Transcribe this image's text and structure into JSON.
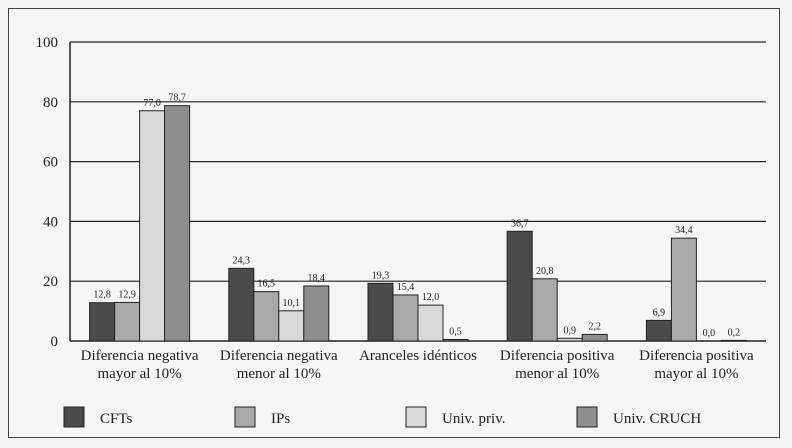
{
  "chart_data": {
    "type": "bar",
    "categories": [
      [
        "Diferencia negativa",
        "mayor al 10%"
      ],
      [
        "Diferencia negativa",
        "menor al 10%"
      ],
      [
        "Aranceles idénticos"
      ],
      [
        "Diferencia positiva",
        "menor al 10%"
      ],
      [
        "Diferencia positiva",
        "mayor al 10%"
      ]
    ],
    "series": [
      {
        "name": "CFTs",
        "color": "#4b4b4b",
        "values": [
          12.8,
          24.3,
          19.3,
          36.7,
          6.9
        ],
        "labels": [
          "12,8",
          "24,3",
          "19,3",
          "36,7",
          "6,9"
        ]
      },
      {
        "name": "IPs",
        "color": "#a9a9a9",
        "values": [
          12.9,
          16.5,
          15.4,
          20.8,
          34.4
        ],
        "labels": [
          "12,9",
          "16,5",
          "15,4",
          "20,8",
          "34,4"
        ]
      },
      {
        "name": "Univ. priv.",
        "color": "#d9d9d9",
        "values": [
          77.0,
          10.1,
          12.0,
          0.9,
          0.0
        ],
        "labels": [
          "77,0",
          "10,1",
          "12,0",
          "0,9",
          "0,0"
        ]
      },
      {
        "name": "Univ. CRUCH",
        "color": "#8e8e8e",
        "values": [
          78.7,
          18.4,
          0.5,
          2.2,
          0.2
        ],
        "labels": [
          "78,7",
          "18,4",
          "0,5",
          "2,2",
          "0,2"
        ]
      }
    ],
    "yticks": [
      "0",
      "20",
      "40",
      "60",
      "80",
      "100"
    ],
    "ylim": [
      0,
      100
    ],
    "grid": true,
    "legend": "bottom"
  }
}
